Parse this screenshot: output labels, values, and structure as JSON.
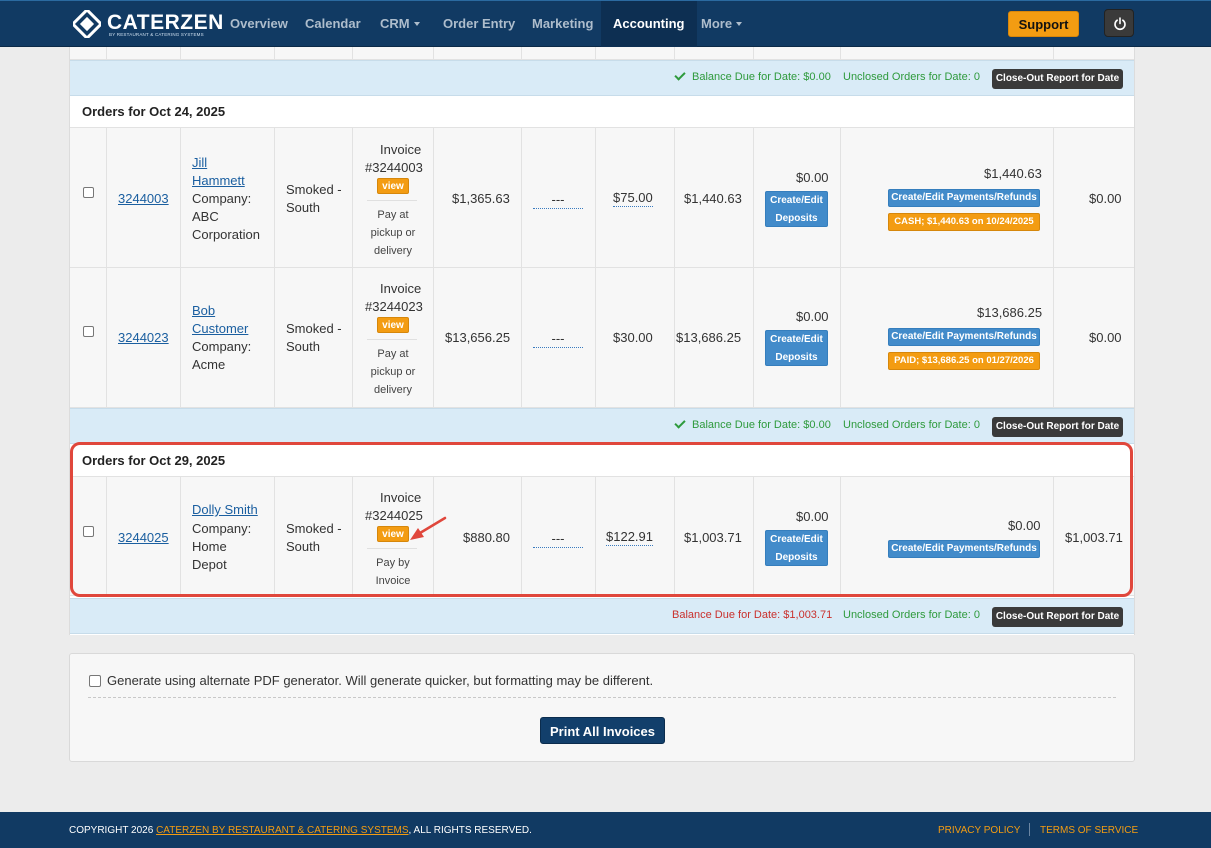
{
  "brand": {
    "name": "CATERZEN",
    "tagline": "BY RESTAURANT & CATERING SYSTEMS"
  },
  "nav": {
    "items": [
      {
        "label": "Overview",
        "active": false,
        "dropdown": false
      },
      {
        "label": "Calendar",
        "active": false,
        "dropdown": false
      },
      {
        "label": "CRM",
        "active": false,
        "dropdown": true
      },
      {
        "label": "Order Entry",
        "active": false,
        "dropdown": false
      },
      {
        "label": "Marketing",
        "active": false,
        "dropdown": false
      },
      {
        "label": "Accounting",
        "active": true,
        "dropdown": false
      },
      {
        "label": "More",
        "active": false,
        "dropdown": true
      }
    ],
    "support_label": "Support",
    "power_icon": "power-icon"
  },
  "summaries": [
    {
      "balance": "Balance Due for Date: $0.00",
      "unclosed": "Unclosed Orders for Date: 0",
      "closeout": "Close-Out Report for Date"
    },
    {
      "balance": "Balance Due for Date: $0.00",
      "unclosed": "Unclosed Orders for Date: 0",
      "closeout": "Close-Out Report for Date"
    },
    {
      "balance": "Balance Due for Date: $1,003.71",
      "unclosed": "Unclosed Orders for Date: 0",
      "closeout": "Close-Out Report for Date"
    }
  ],
  "groups": [
    {
      "date_label": "Orders for Oct 24, 2025",
      "orders": [
        {
          "order_no": "3244003",
          "customer_name": "Jill Hammett",
          "company_line1": "Company:",
          "company_line2": "ABC",
          "company_line3": "Corporation",
          "location": "Smoked - South",
          "invoice_label": "Invoice",
          "invoice_no": "#3244003",
          "view_label": "view",
          "payment_terms": "Pay at pickup or delivery",
          "subtotal": "$1,365.63",
          "discount": "---",
          "fee": "$75.00",
          "total": "$1,440.63",
          "deposit": "$0.00",
          "deposit_btn": "Create/Edit Deposits",
          "paid": "$1,440.63",
          "payments_btn": "Create/Edit Payments/Refunds",
          "payment_badge": "CASH; $1,440.63 on 10/24/2025",
          "balance": "$0.00"
        },
        {
          "order_no": "3244023",
          "customer_name": "Bob Customer",
          "company_line1": "Company:",
          "company_line2": "Acme",
          "company_line3": "",
          "location": "Smoked - South",
          "invoice_label": "Invoice",
          "invoice_no": "#3244023",
          "view_label": "view",
          "payment_terms": "Pay at pickup or delivery",
          "subtotal": "$13,656.25",
          "discount": "---",
          "fee": "$30.00",
          "total": "$13,686.25",
          "deposit": "$0.00",
          "deposit_btn": "Create/Edit Deposits",
          "paid": "$13,686.25",
          "payments_btn": "Create/Edit Payments/Refunds",
          "payment_badge": "PAID; $13,686.25 on 01/27/2026",
          "balance": "$0.00"
        }
      ]
    },
    {
      "date_label": "Orders for Oct 29, 2025",
      "orders": [
        {
          "order_no": "3244025",
          "customer_name": "Dolly Smith",
          "company_line1": "Company:",
          "company_line2": "Home",
          "company_line3": "Depot",
          "location": "Smoked - South",
          "invoice_label": "Invoice",
          "invoice_no": "#3244025",
          "view_label": "view",
          "payment_terms": "Pay by Invoice",
          "subtotal": "$880.80",
          "discount": "---",
          "fee": "$122.91",
          "total": "$1,003.71",
          "deposit": "$0.00",
          "deposit_btn": "Create/Edit Deposits",
          "paid": "$0.00",
          "payments_btn": "Create/Edit Payments/Refunds",
          "payment_badge": "",
          "balance": "$1,003.71"
        }
      ]
    }
  ],
  "print": {
    "alt_pdf_label": "Generate using alternate PDF generator. Will generate quicker, but formatting may be different.",
    "print_all_label": "Print All Invoices"
  },
  "footer": {
    "copyright_prefix": "COPYRIGHT 2026",
    "company": "CATERZEN BY RESTAURANT & CATERING SYSTEMS",
    "rights": ", ALL RIGHTS RESERVED.",
    "privacy": "PRIVACY POLICY",
    "terms": "TERMS OF SERVICE"
  },
  "colors": {
    "navy": "#113a63",
    "orange": "#f39c12",
    "blue_button": "#428bca",
    "green_text": "#2e9a3c",
    "red_text": "#c9302c",
    "highlight": "#e0473c"
  }
}
